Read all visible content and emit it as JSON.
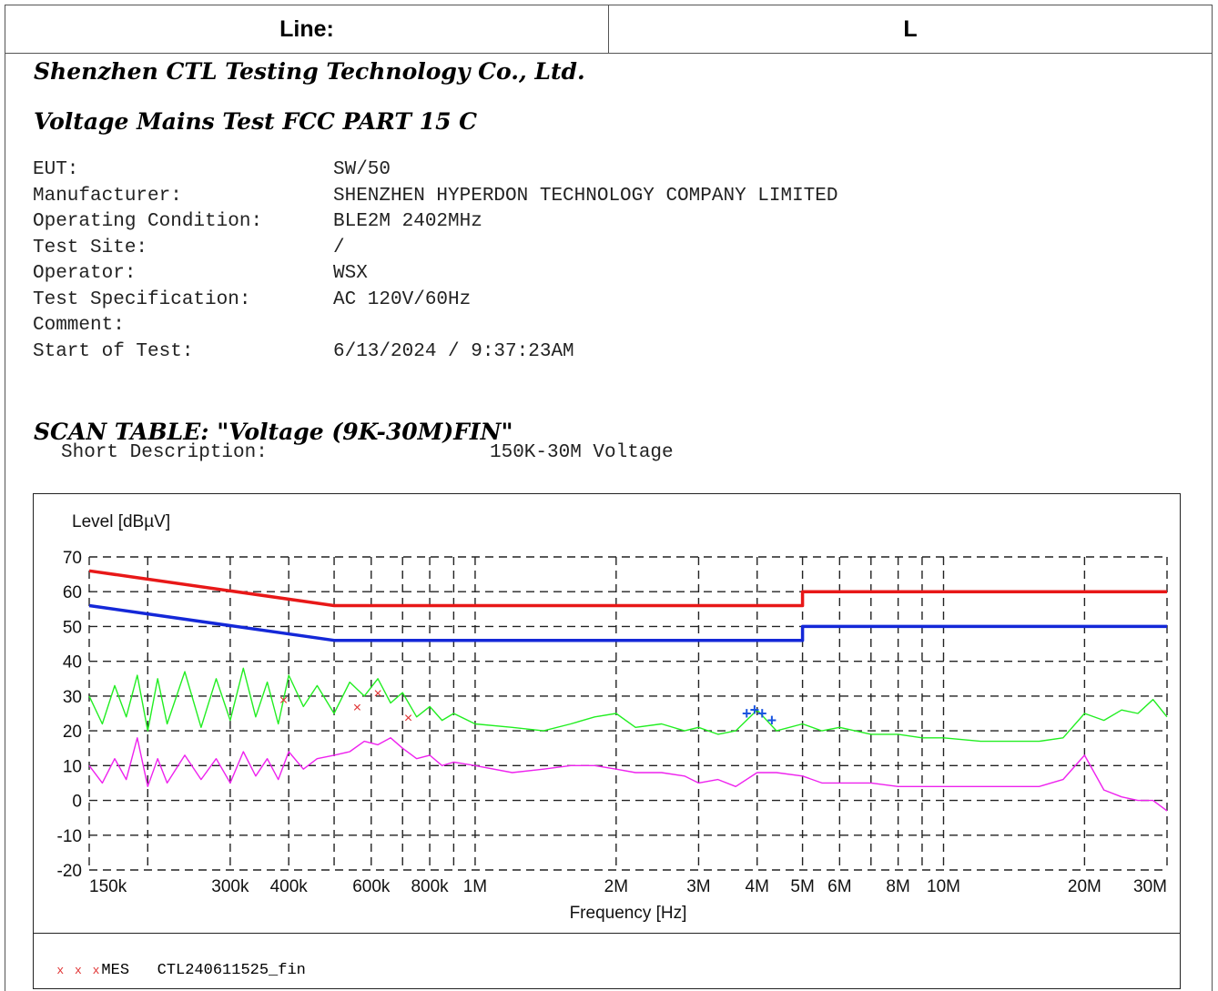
{
  "header": {
    "line_label": "Line:",
    "line_value": "L"
  },
  "report": {
    "company": "Shenzhen CTL Testing Technology Co., Ltd.",
    "test_title": "Voltage Mains Test FCC PART 15 C",
    "info": [
      {
        "key": "EUT:",
        "value": "SW/50"
      },
      {
        "key": "Manufacturer:",
        "value": "SHENZHEN HYPERDON TECHNOLOGY COMPANY LIMITED"
      },
      {
        "key": "Operating Condition:",
        "value": "BLE2M 2402MHz"
      },
      {
        "key": "Test Site:",
        "value": "/"
      },
      {
        "key": "Operator:",
        "value": "WSX"
      },
      {
        "key": "Test Specification:",
        "value": "AC 120V/60Hz"
      },
      {
        "key": "Comment:",
        "value": ""
      },
      {
        "key": "Start of Test:",
        "value": "6/13/2024 / 9:37:23AM"
      }
    ],
    "scan_table_title": "SCAN TABLE: \"Voltage (9K-30M)FIN\"",
    "short_desc_label": "Short Description:",
    "short_desc_value": "150K-30M Voltage"
  },
  "legend": {
    "markers": "x x x",
    "label": "MES",
    "file": "CTL240611525_fin"
  },
  "colors": {
    "qp_limit": "#e81818",
    "av_limit": "#1428d8",
    "peak_trace": "#22ee22",
    "avg_trace": "#ee22ee",
    "qp_marker": "#e03030",
    "av_marker": "#1a55e0"
  },
  "chart_data": {
    "type": "line",
    "ylabel": "Level [dBµV]",
    "xlabel": "Frequency [Hz]",
    "x_scale": "log",
    "xlim": [
      150000,
      30000000
    ],
    "ylim": [
      -20,
      70
    ],
    "grid": "dashed",
    "y_ticks": [
      70,
      60,
      50,
      40,
      30,
      20,
      10,
      0,
      -10,
      -20
    ],
    "x_ticks": [
      {
        "value": 150000,
        "label": "150k"
      },
      {
        "value": 300000,
        "label": "300k"
      },
      {
        "value": 400000,
        "label": "400k"
      },
      {
        "value": 600000,
        "label": "600k"
      },
      {
        "value": 800000,
        "label": "800k"
      },
      {
        "value": 1000000,
        "label": "1M"
      },
      {
        "value": 2000000,
        "label": "2M"
      },
      {
        "value": 3000000,
        "label": "3M"
      },
      {
        "value": 4000000,
        "label": "4M"
      },
      {
        "value": 5000000,
        "label": "5M"
      },
      {
        "value": 6000000,
        "label": "6M"
      },
      {
        "value": 8000000,
        "label": "8M"
      },
      {
        "value": 10000000,
        "label": "10M"
      },
      {
        "value": 20000000,
        "label": "20M"
      },
      {
        "value": 30000000,
        "label": "30M"
      }
    ],
    "grid_x": [
      200000,
      300000,
      400000,
      500000,
      600000,
      700000,
      800000,
      900000,
      1000000,
      2000000,
      3000000,
      4000000,
      5000000,
      6000000,
      7000000,
      8000000,
      9000000,
      10000000,
      20000000,
      30000000
    ],
    "series": [
      {
        "role": "qp_limit",
        "x": [
          150000,
          500000,
          500000,
          5000000,
          5000000,
          30000000
        ],
        "y": [
          66,
          56,
          56,
          56,
          60,
          60
        ]
      },
      {
        "role": "av_limit",
        "x": [
          150000,
          500000,
          500000,
          5000000,
          5000000,
          30000000
        ],
        "y": [
          56,
          46,
          46,
          46,
          50,
          50
        ]
      },
      {
        "role": "peak_trace",
        "x": [
          150000,
          160000,
          170000,
          180000,
          190000,
          200000,
          210000,
          220000,
          240000,
          260000,
          280000,
          300000,
          320000,
          340000,
          360000,
          380000,
          400000,
          430000,
          460000,
          500000,
          540000,
          580000,
          620000,
          660000,
          700000,
          750000,
          800000,
          850000,
          900000,
          1000000,
          1200000,
          1400000,
          1600000,
          1800000,
          2000000,
          2200000,
          2500000,
          2800000,
          3000000,
          3300000,
          3600000,
          4000000,
          4400000,
          5000000,
          5500000,
          6000000,
          7000000,
          8000000,
          9000000,
          10000000,
          12000000,
          14000000,
          16000000,
          18000000,
          20000000,
          22000000,
          24000000,
          26000000,
          28000000,
          30000000
        ],
        "y": [
          30,
          22,
          33,
          24,
          36,
          20,
          35,
          22,
          37,
          21,
          35,
          23,
          38,
          24,
          34,
          22,
          36,
          27,
          33,
          25,
          34,
          30,
          35,
          28,
          31,
          24,
          27,
          23,
          25,
          22,
          21,
          20,
          22,
          24,
          25,
          21,
          22,
          20,
          21,
          19,
          20,
          26,
          20,
          22,
          20,
          21,
          19,
          19,
          18,
          18,
          17,
          17,
          17,
          18,
          25,
          23,
          26,
          25,
          29,
          24
        ]
      },
      {
        "role": "avg_trace",
        "x": [
          150000,
          160000,
          170000,
          180000,
          190000,
          200000,
          210000,
          220000,
          240000,
          260000,
          280000,
          300000,
          320000,
          340000,
          360000,
          380000,
          400000,
          430000,
          460000,
          500000,
          540000,
          580000,
          620000,
          660000,
          700000,
          750000,
          800000,
          850000,
          900000,
          1000000,
          1200000,
          1400000,
          1600000,
          1800000,
          2000000,
          2200000,
          2500000,
          2800000,
          3000000,
          3300000,
          3600000,
          4000000,
          4400000,
          5000000,
          5500000,
          6000000,
          7000000,
          8000000,
          9000000,
          10000000,
          12000000,
          14000000,
          16000000,
          18000000,
          20000000,
          22000000,
          24000000,
          26000000,
          28000000,
          30000000
        ],
        "y": [
          10,
          5,
          12,
          6,
          18,
          4,
          12,
          5,
          13,
          6,
          12,
          5,
          14,
          7,
          12,
          6,
          14,
          9,
          12,
          13,
          14,
          17,
          16,
          18,
          15,
          12,
          13,
          10,
          11,
          10,
          8,
          9,
          10,
          10,
          9,
          8,
          8,
          7,
          5,
          6,
          4,
          8,
          8,
          7,
          5,
          5,
          5,
          4,
          4,
          4,
          4,
          4,
          4,
          6,
          13,
          3,
          1,
          0,
          0,
          -3
        ]
      }
    ],
    "markers": {
      "qp": {
        "x": [
          390000,
          560000,
          620000,
          720000
        ],
        "y": [
          29,
          27,
          31,
          24
        ]
      },
      "av": {
        "x": [
          3800000,
          3950000,
          4100000,
          4300000
        ],
        "y": [
          25,
          26,
          25,
          23
        ]
      }
    }
  }
}
